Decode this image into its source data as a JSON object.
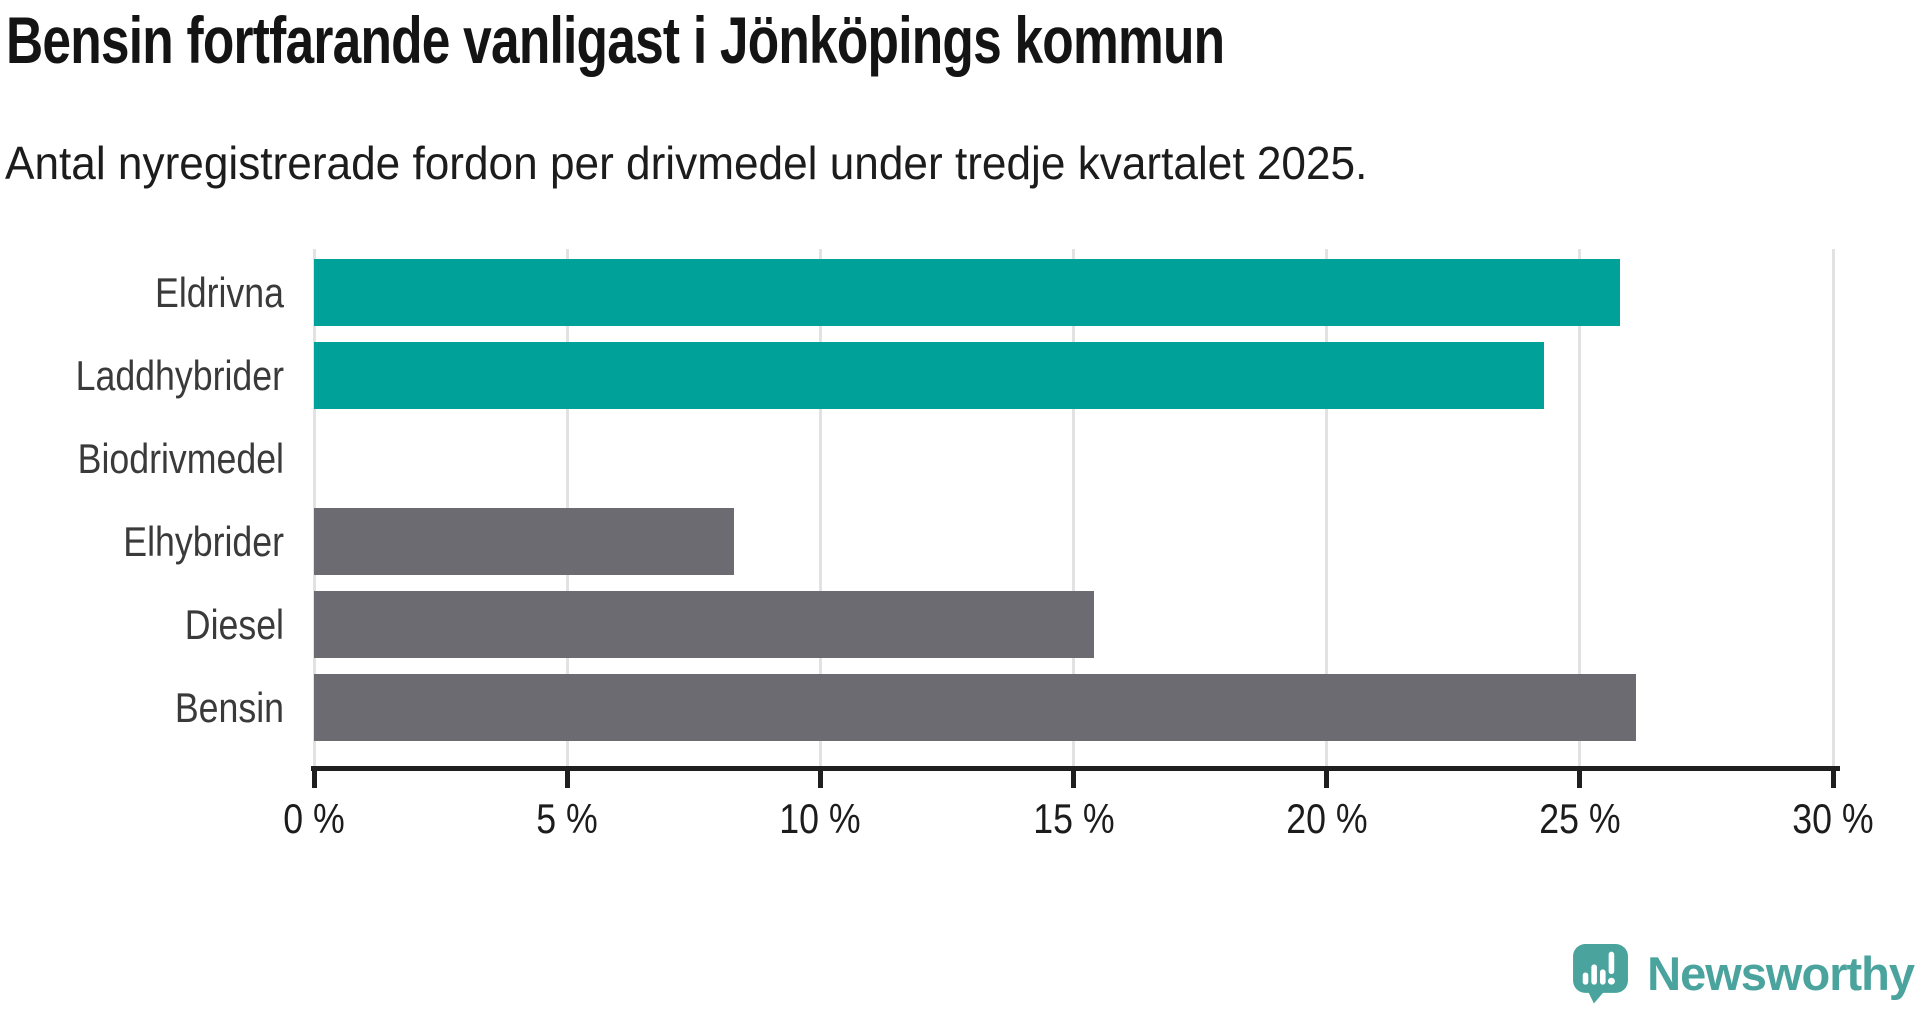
{
  "chart": {
    "title": "Bensin fortfarande vanligast i Jönköpings kommun",
    "subtitle": "Antal nyregistrerade fordon per drivmedel under tredje kvartalet 2025."
  },
  "chart_data": {
    "type": "bar",
    "orientation": "horizontal",
    "title": "Bensin fortfarande vanligast i Jönköpings kommun",
    "subtitle": "Antal nyregistrerade fordon per drivmedel under tredje kvartalet 2025.",
    "categories": [
      "Eldrivna",
      "Laddhybrider",
      "Biodrivmedel",
      "Elhybrider",
      "Diesel",
      "Bensin"
    ],
    "values": [
      25.8,
      24.3,
      0,
      8.3,
      15.4,
      26.1
    ],
    "unit": "%",
    "xlabel": "",
    "ylabel": "",
    "xlim": [
      0,
      30
    ],
    "x_ticks": [
      0,
      5,
      10,
      15,
      20,
      25,
      30
    ],
    "x_tick_suffix": " %",
    "grid": "vertical-only",
    "legend": "none",
    "bar_colors": [
      "#00a199",
      "#00a199",
      "#6b6b71",
      "#6b6b71",
      "#6b6b71",
      "#6b6b71"
    ]
  },
  "colors": {
    "highlight_teal": "#00a199",
    "neutral_gray": "#6b6b71",
    "gridline": "#e2e2e2",
    "axis": "#1f1f1f",
    "logo_teal": "#4aa39d"
  },
  "footer": {
    "logo_text": "Newsworthy"
  }
}
